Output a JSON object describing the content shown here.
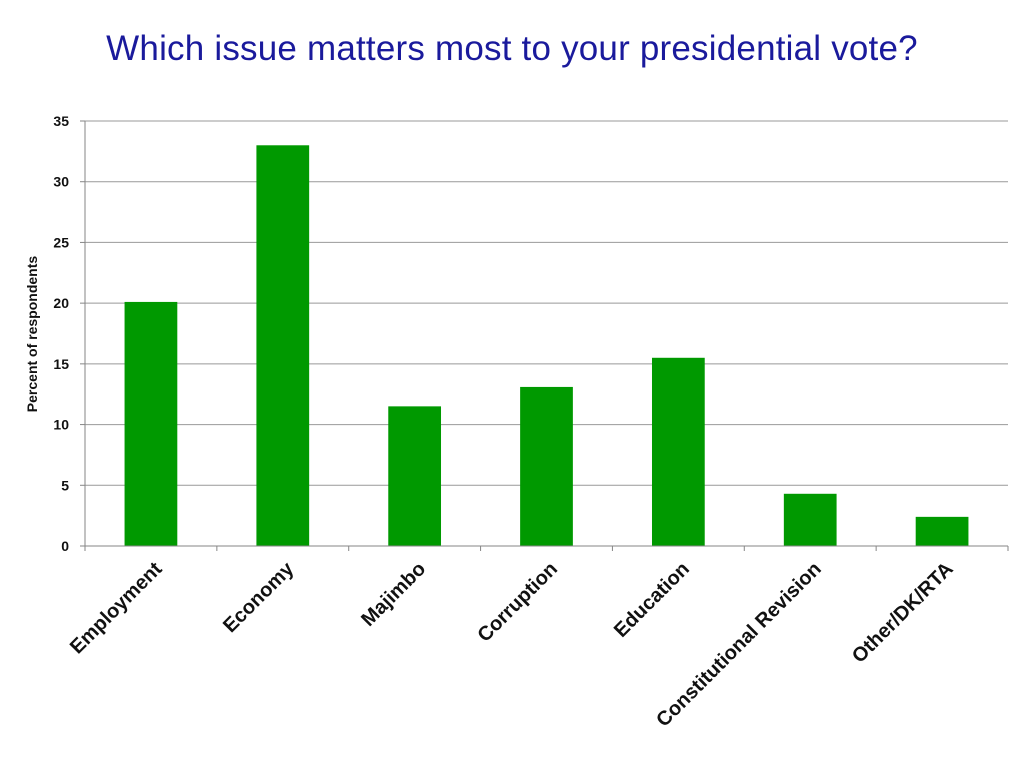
{
  "chart_data": {
    "type": "bar",
    "title": "Which issue matters most to your presidential vote?",
    "xlabel": "",
    "ylabel": "Percent of respondents",
    "categories": [
      "Employment",
      "Economy",
      "Majimbo",
      "Corruption",
      "Education",
      "Constitutional Revision",
      "Other/DK/RTA"
    ],
    "values": [
      20.1,
      33.0,
      11.5,
      13.1,
      15.5,
      4.3,
      2.4
    ],
    "ylim": [
      0,
      35
    ],
    "yticks": [
      "0",
      "5",
      "10",
      "15",
      "20",
      "25",
      "30",
      "35"
    ],
    "grid": true,
    "legend": "none",
    "bar_color": "#009900",
    "grid_color": "#999999"
  }
}
